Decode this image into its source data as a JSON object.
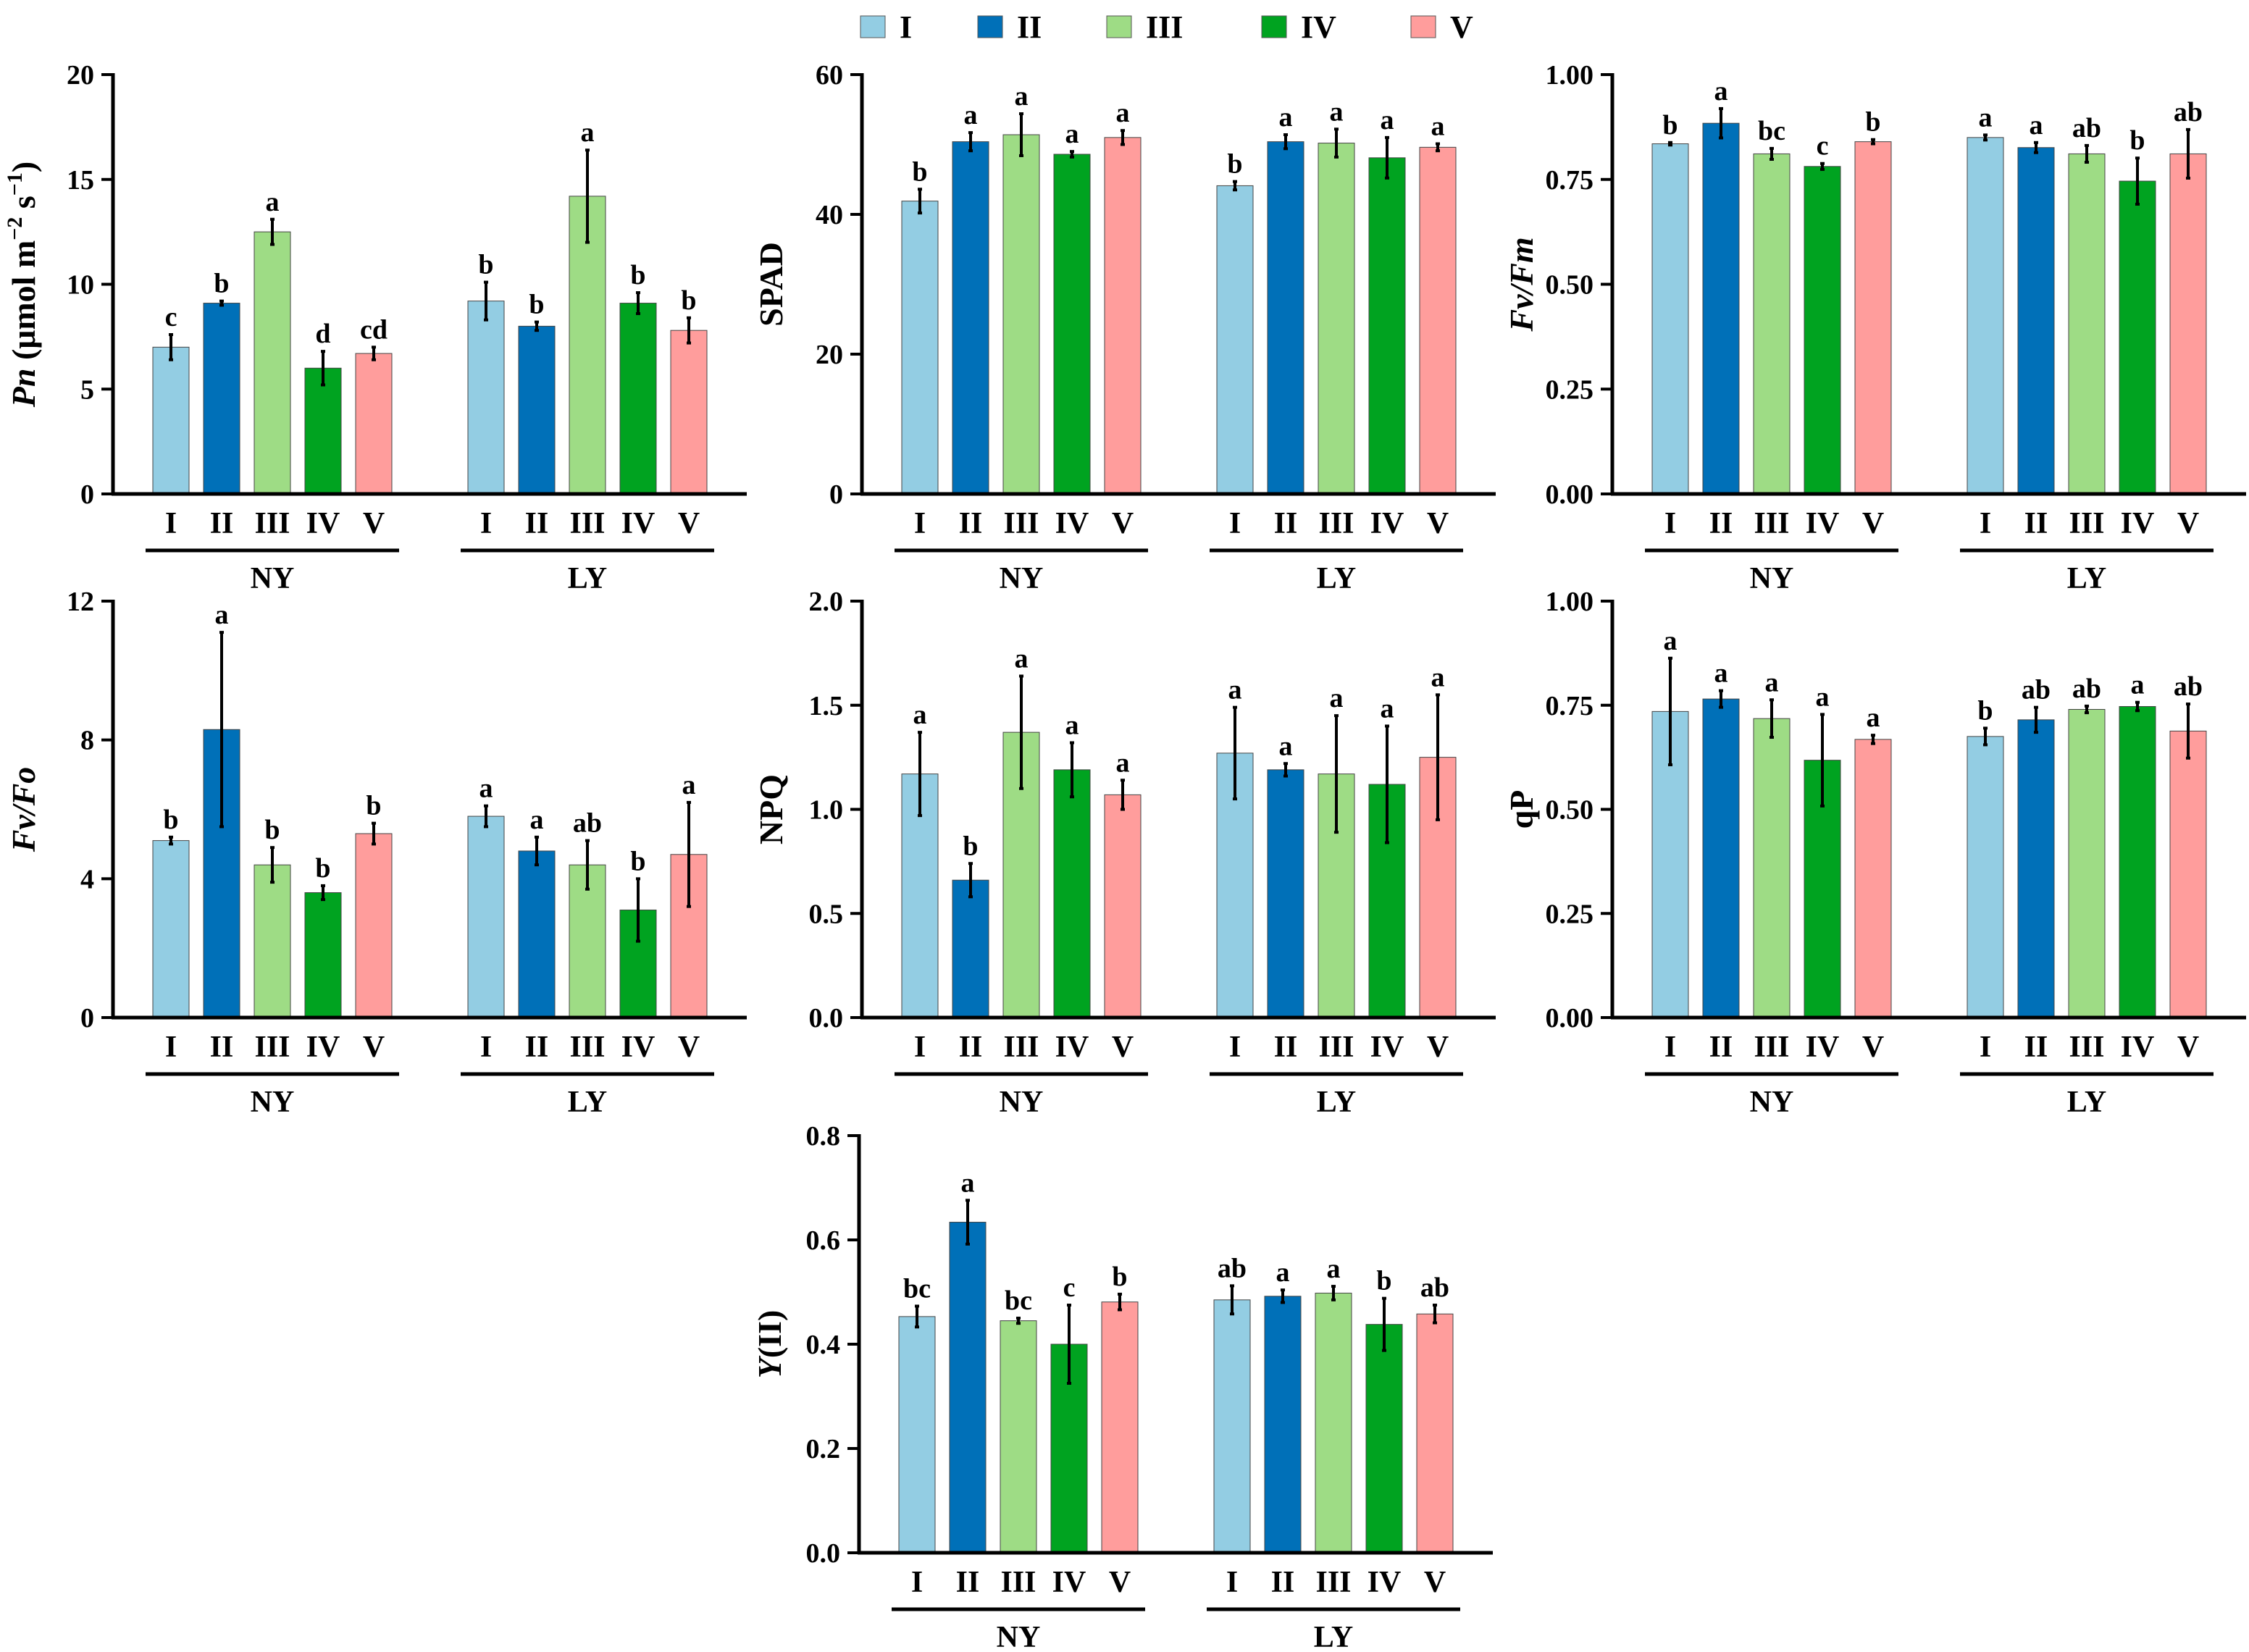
{
  "legend": {
    "items": [
      {
        "label": "I",
        "color": "#93cde3"
      },
      {
        "label": "II",
        "color": "#0070b8"
      },
      {
        "label": "III",
        "color": "#9edc85"
      },
      {
        "label": "IV",
        "color": "#00a320"
      },
      {
        "label": "V",
        "color": "#ff9d9c"
      }
    ]
  },
  "chart_data": [
    {
      "type": "bar",
      "title": "",
      "ylabel": {
        "italic": "Pn",
        "text": " (μmol m",
        "sup1": "−2",
        "mid": " s",
        "sup2": "−1",
        "end": ")"
      },
      "ylim": [
        0,
        20
      ],
      "yticks": [
        "0",
        "5",
        "10",
        "15",
        "20"
      ],
      "categories": [
        "I",
        "II",
        "III",
        "IV",
        "V"
      ],
      "groups": [
        {
          "name": "NY",
          "values": [
            7.0,
            9.1,
            12.5,
            6.0,
            6.7
          ],
          "errors": [
            0.6,
            0.1,
            0.6,
            0.8,
            0.3
          ],
          "letters": [
            "c",
            "b",
            "a",
            "d",
            "cd"
          ]
        },
        {
          "name": "LY",
          "values": [
            9.2,
            8.0,
            14.2,
            9.1,
            7.8
          ],
          "errors": [
            0.9,
            0.2,
            2.2,
            0.5,
            0.6
          ],
          "letters": [
            "b",
            "b",
            "a",
            "b",
            "b"
          ]
        }
      ]
    },
    {
      "type": "bar",
      "title": "",
      "ylabel": {
        "text": "SPAD"
      },
      "ylim": [
        0,
        60
      ],
      "yticks": [
        "0",
        "20",
        "40",
        "60"
      ],
      "categories": [
        "I",
        "II",
        "III",
        "IV",
        "V"
      ],
      "groups": [
        {
          "name": "NY",
          "values": [
            41.9,
            50.4,
            51.4,
            48.6,
            51.0
          ],
          "errors": [
            1.7,
            1.3,
            3.0,
            0.4,
            1.0
          ],
          "letters": [
            "b",
            "a",
            "a",
            "a",
            "a"
          ]
        },
        {
          "name": "LY",
          "values": [
            44.1,
            50.4,
            50.2,
            48.1,
            49.6
          ],
          "errors": [
            0.6,
            1.0,
            2.0,
            2.9,
            0.5
          ],
          "letters": [
            "b",
            "a",
            "a",
            "a",
            "a"
          ]
        }
      ]
    },
    {
      "type": "bar",
      "title": "",
      "ylabel": {
        "italic": "Fv/Fm"
      },
      "ylim": [
        0,
        1
      ],
      "yticks": [
        "0.00",
        "0.25",
        "0.50",
        "0.75",
        "1.00"
      ],
      "categories": [
        "I",
        "II",
        "III",
        "IV",
        "V"
      ],
      "groups": [
        {
          "name": "NY",
          "values": [
            0.835,
            0.884,
            0.811,
            0.781,
            0.84
          ],
          "errors": [
            0.003,
            0.035,
            0.013,
            0.007,
            0.005
          ],
          "letters": [
            "b",
            "a",
            "bc",
            "c",
            "b"
          ]
        },
        {
          "name": "LY",
          "values": [
            0.85,
            0.826,
            0.811,
            0.746,
            0.811
          ],
          "errors": [
            0.006,
            0.012,
            0.02,
            0.055,
            0.058
          ],
          "letters": [
            "a",
            "a",
            "ab",
            "b",
            "ab"
          ]
        }
      ]
    },
    {
      "type": "bar",
      "title": "",
      "ylabel": {
        "italic": "Fv/Fo"
      },
      "ylim": [
        0,
        12
      ],
      "yticks": [
        "0",
        "4",
        "8",
        "12"
      ],
      "categories": [
        "I",
        "II",
        "III",
        "IV",
        "V"
      ],
      "groups": [
        {
          "name": "NY",
          "values": [
            5.1,
            8.3,
            4.4,
            3.6,
            5.3
          ],
          "errors": [
            0.1,
            2.8,
            0.5,
            0.2,
            0.3
          ],
          "letters": [
            "b",
            "a",
            "b",
            "b",
            "b"
          ]
        },
        {
          "name": "LY",
          "values": [
            5.8,
            4.8,
            4.4,
            3.1,
            4.7
          ],
          "errors": [
            0.3,
            0.4,
            0.7,
            0.9,
            1.5
          ],
          "letters": [
            "a",
            "a",
            "ab",
            "b",
            "a"
          ]
        }
      ]
    },
    {
      "type": "bar",
      "title": "",
      "ylabel": {
        "text": "NPQ"
      },
      "ylim": [
        0,
        2
      ],
      "yticks": [
        "0.0",
        "0.5",
        "1.0",
        "1.5",
        "2.0"
      ],
      "categories": [
        "I",
        "II",
        "III",
        "IV",
        "V"
      ],
      "groups": [
        {
          "name": "NY",
          "values": [
            1.17,
            0.66,
            1.37,
            1.19,
            1.07
          ],
          "errors": [
            0.2,
            0.08,
            0.27,
            0.13,
            0.07
          ],
          "letters": [
            "a",
            "b",
            "a",
            "a",
            "a"
          ]
        },
        {
          "name": "LY",
          "values": [
            1.27,
            1.19,
            1.17,
            1.12,
            1.25
          ],
          "errors": [
            0.22,
            0.03,
            0.28,
            0.28,
            0.3
          ],
          "letters": [
            "a",
            "a",
            "a",
            "a",
            "a"
          ]
        }
      ]
    },
    {
      "type": "bar",
      "title": "",
      "ylabel": {
        "text": "qP"
      },
      "ylim": [
        0,
        1
      ],
      "yticks": [
        "0.00",
        "0.25",
        "0.50",
        "0.75",
        "1.00"
      ],
      "categories": [
        "I",
        "II",
        "III",
        "IV",
        "V"
      ],
      "groups": [
        {
          "name": "NY",
          "values": [
            0.735,
            0.765,
            0.718,
            0.618,
            0.668
          ],
          "errors": [
            0.128,
            0.02,
            0.045,
            0.11,
            0.01
          ],
          "letters": [
            "a",
            "a",
            "a",
            "a",
            "a"
          ]
        },
        {
          "name": "LY",
          "values": [
            0.675,
            0.715,
            0.74,
            0.747,
            0.688
          ],
          "errors": [
            0.02,
            0.03,
            0.008,
            0.01,
            0.065
          ],
          "letters": [
            "b",
            "ab",
            "ab",
            "a",
            "ab"
          ]
        }
      ]
    },
    {
      "type": "bar",
      "title": "",
      "ylabel": {
        "italic": "Y",
        "text": "(II)"
      },
      "ylim": [
        0,
        0.8
      ],
      "yticks": [
        "0.0",
        "0.2",
        "0.4",
        "0.6",
        "0.8"
      ],
      "categories": [
        "I",
        "II",
        "III",
        "IV",
        "V"
      ],
      "groups": [
        {
          "name": "NY",
          "values": [
            0.453,
            0.634,
            0.445,
            0.4,
            0.481
          ],
          "errors": [
            0.02,
            0.042,
            0.005,
            0.075,
            0.015
          ],
          "letters": [
            "bc",
            "a",
            "bc",
            "c",
            "b"
          ]
        },
        {
          "name": "LY",
          "values": [
            0.485,
            0.492,
            0.498,
            0.438,
            0.458
          ],
          "errors": [
            0.027,
            0.012,
            0.013,
            0.05,
            0.017
          ],
          "letters": [
            "ab",
            "a",
            "a",
            "b",
            "ab"
          ]
        }
      ]
    }
  ]
}
